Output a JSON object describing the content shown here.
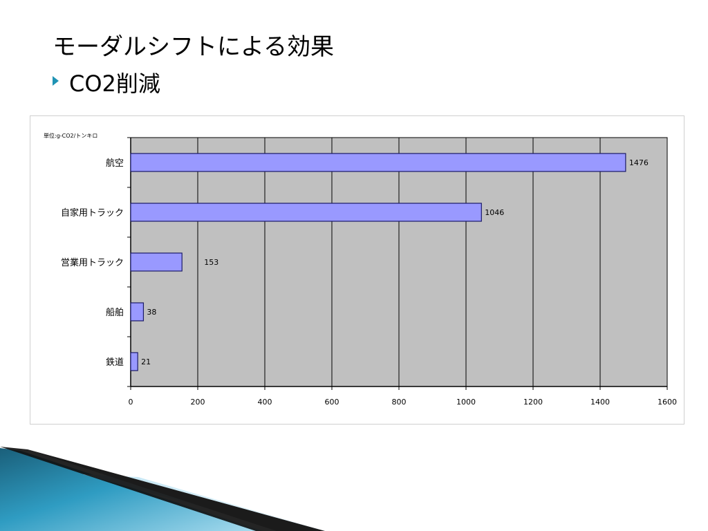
{
  "slide": {
    "title": "モーダルシフトによる効果",
    "bullet": "CO2削減",
    "accent_color": "#1f93b4"
  },
  "chart_data": {
    "type": "bar",
    "orientation": "horizontal",
    "unit_label": "単位:g-CO2/トンキロ",
    "categories": [
      "航空",
      "自家用トラック",
      "営業用トラック",
      "船舶",
      "鉄道"
    ],
    "values": [
      1476,
      1046,
      153,
      38,
      21
    ],
    "data_labels": [
      "1476",
      "1046",
      "153",
      "38",
      "21"
    ],
    "x_ticks": [
      0,
      200,
      400,
      600,
      800,
      1000,
      1200,
      1400,
      1600
    ],
    "xlim": [
      0,
      1600
    ],
    "grid": true,
    "legend": "none",
    "bar_color": "#9999ff",
    "plot_bg": "#c0c0c0"
  }
}
